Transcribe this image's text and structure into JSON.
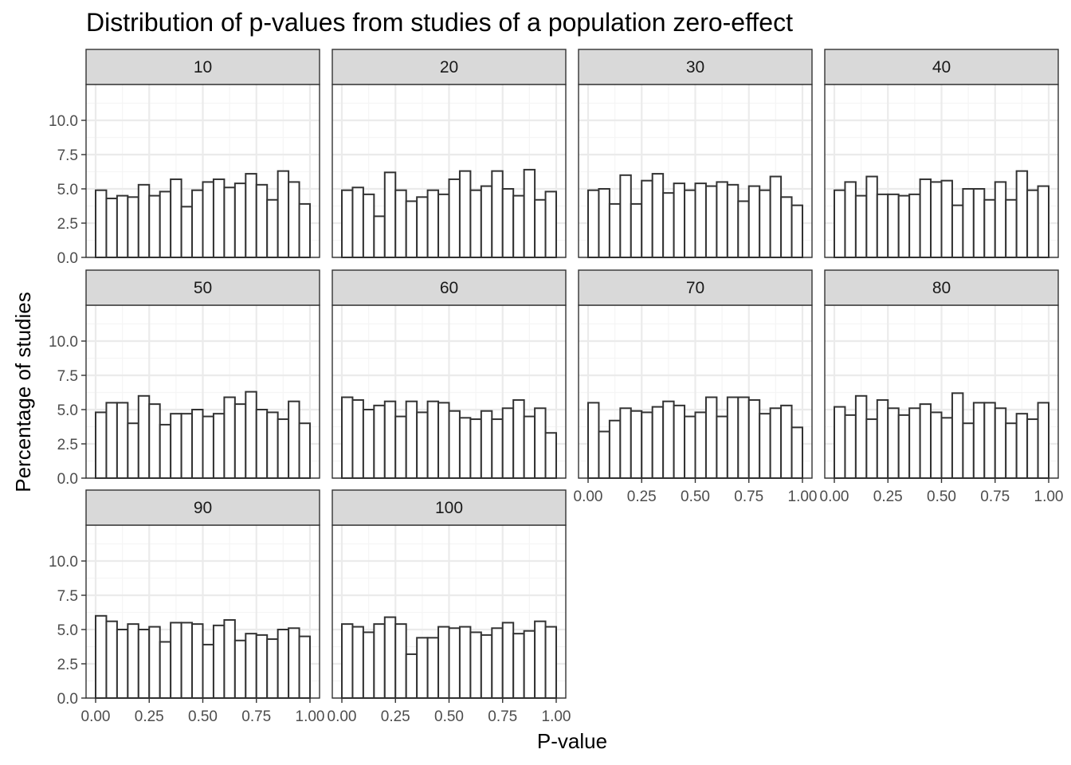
{
  "chart_data": {
    "type": "bar",
    "title": "Distribution of p-values from studies of a population zero-effect",
    "xlabel": "P-value",
    "ylabel": "Percentage of studies",
    "xlim": [
      0,
      1
    ],
    "ylim": [
      0,
      10
    ],
    "x_ticks": [
      "0.00",
      "0.25",
      "0.50",
      "0.75",
      "1.00"
    ],
    "y_ticks": [
      "0.0",
      "2.5",
      "5.0",
      "7.5",
      "10.0"
    ],
    "bin_width": 0.05,
    "bin_centers": [
      0.025,
      0.075,
      0.125,
      0.175,
      0.225,
      0.275,
      0.325,
      0.375,
      0.425,
      0.475,
      0.525,
      0.575,
      0.625,
      0.675,
      0.725,
      0.775,
      0.825,
      0.875,
      0.925,
      0.975
    ],
    "grid": true,
    "facets": [
      {
        "label": "10",
        "values": [
          4.9,
          4.3,
          4.5,
          4.4,
          5.3,
          4.5,
          4.8,
          5.7,
          3.7,
          4.9,
          5.5,
          5.7,
          5.1,
          5.4,
          6.1,
          5.3,
          4.2,
          6.3,
          5.5,
          3.9
        ]
      },
      {
        "label": "20",
        "values": [
          4.9,
          5.1,
          4.6,
          3.0,
          6.2,
          4.9,
          4.1,
          4.4,
          4.9,
          4.6,
          5.7,
          6.3,
          4.9,
          5.2,
          6.3,
          5.0,
          4.5,
          6.4,
          4.2,
          4.8
        ]
      },
      {
        "label": "30",
        "values": [
          4.9,
          5.0,
          3.9,
          6.0,
          3.9,
          5.6,
          6.1,
          4.7,
          5.4,
          4.9,
          5.4,
          5.2,
          5.5,
          5.3,
          4.1,
          5.2,
          4.9,
          5.9,
          4.4,
          3.8
        ]
      },
      {
        "label": "40",
        "values": [
          4.9,
          5.5,
          4.5,
          5.9,
          4.6,
          4.6,
          4.5,
          4.6,
          5.7,
          5.5,
          5.6,
          3.8,
          5.0,
          5.0,
          4.2,
          5.5,
          4.2,
          6.3,
          4.9,
          5.2
        ]
      },
      {
        "label": "50",
        "values": [
          4.8,
          5.5,
          5.5,
          4.0,
          6.0,
          5.4,
          3.9,
          4.7,
          4.7,
          5.0,
          4.5,
          4.7,
          5.9,
          5.4,
          6.3,
          5.0,
          4.8,
          4.3,
          5.6,
          4.0
        ]
      },
      {
        "label": "60",
        "values": [
          5.9,
          5.7,
          5.0,
          5.3,
          5.6,
          4.5,
          5.6,
          4.8,
          5.6,
          5.5,
          4.9,
          4.4,
          4.3,
          4.9,
          4.3,
          5.1,
          5.7,
          4.5,
          5.1,
          3.3
        ]
      },
      {
        "label": "70",
        "values": [
          5.5,
          3.4,
          4.2,
          5.1,
          4.9,
          4.8,
          5.2,
          5.6,
          5.3,
          4.5,
          4.8,
          5.9,
          4.5,
          5.9,
          5.9,
          5.7,
          4.7,
          5.1,
          5.3,
          3.7
        ]
      },
      {
        "label": "80",
        "values": [
          5.2,
          4.6,
          6.0,
          4.3,
          5.7,
          5.1,
          4.6,
          5.1,
          5.4,
          4.8,
          4.4,
          6.2,
          4.0,
          5.5,
          5.5,
          5.1,
          4.0,
          4.7,
          4.3,
          5.5
        ]
      },
      {
        "label": "90",
        "values": [
          6.0,
          5.6,
          5.0,
          5.4,
          5.0,
          5.2,
          4.1,
          5.5,
          5.5,
          5.4,
          3.9,
          5.3,
          5.7,
          4.2,
          4.7,
          4.6,
          4.3,
          5.0,
          5.1,
          4.5
        ]
      },
      {
        "label": "100",
        "values": [
          5.4,
          5.2,
          4.8,
          5.4,
          5.9,
          5.4,
          3.2,
          4.4,
          4.4,
          5.2,
          5.1,
          5.2,
          4.8,
          4.6,
          5.1,
          5.5,
          4.7,
          4.9,
          5.6,
          5.2
        ]
      }
    ]
  },
  "colors": {
    "bar_outline": "#333333",
    "bar_fill": "#ffffff",
    "strip_fill": "#d9d9d9",
    "grid_major": "#ebebeb",
    "grid_minor": "#f5f5f5",
    "panel_border": "#333333",
    "tick_text": "#4d4d4d",
    "text": "#000000"
  }
}
